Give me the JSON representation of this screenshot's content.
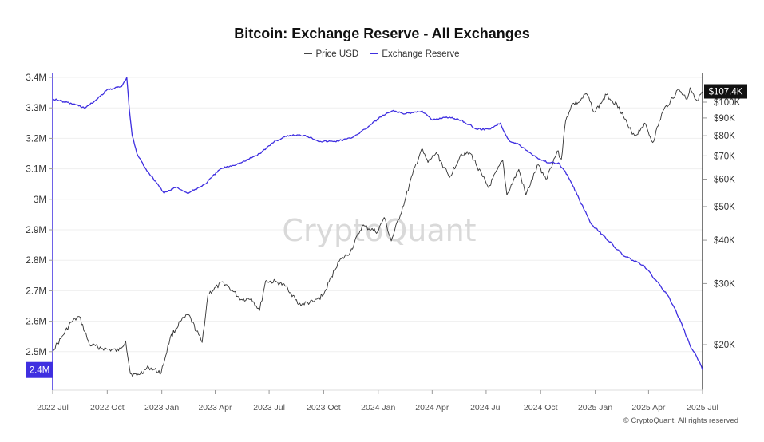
{
  "title": "Bitcoin: Exchange Reserve - All Exchanges",
  "watermark": "CryptoQuant",
  "copyright": "© CryptoQuant. All rights reserved",
  "colors": {
    "price": "#333333",
    "reserve": "#3f2fe0",
    "badge_price": "#111111",
    "badge_reserve": "#3f2fe0",
    "grid": "#efefef"
  },
  "chart_data": {
    "type": "line",
    "title": "Bitcoin: Exchange Reserve - All Exchanges",
    "legend_position": "top-center",
    "grid": true,
    "x_ticks": [
      "2022 Jul",
      "2022 Oct",
      "2023 Jan",
      "2023 Apr",
      "2023 Jul",
      "2023 Oct",
      "2024 Jan",
      "2024 Apr",
      "2024 Jul",
      "2024 Oct",
      "2025 Jan",
      "2025 Apr",
      "2025 Jul"
    ],
    "left_axis": {
      "series": "Exchange Reserve",
      "ylim": [
        2.4,
        3.4
      ],
      "ticks": [
        "3.4M",
        "3.3M",
        "3.2M",
        "3.1M",
        "3M",
        "2.9M",
        "2.8M",
        "2.7M",
        "2.6M",
        "2.5M"
      ],
      "tick_values": [
        3.4,
        3.3,
        3.2,
        3.1,
        3.0,
        2.9,
        2.8,
        2.7,
        2.6,
        2.5
      ],
      "current_label": "2.4M"
    },
    "right_axis": {
      "series": "Price USD",
      "scale": "log",
      "ticks": [
        "$100K",
        "$90K",
        "$80K",
        "$70K",
        "$60K",
        "$50K",
        "$40K",
        "$30K",
        "$20K"
      ],
      "tick_values": [
        100000,
        90000,
        80000,
        70000,
        60000,
        50000,
        40000,
        30000,
        20000
      ],
      "current_label": "$107.4K"
    },
    "series": [
      {
        "name": "Price USD",
        "axis": "right",
        "points": [
          [
            "2022-07-01",
            19300
          ],
          [
            "2022-07-15",
            20800
          ],
          [
            "2022-08-01",
            23200
          ],
          [
            "2022-08-15",
            24100
          ],
          [
            "2022-09-01",
            20000
          ],
          [
            "2022-09-15",
            19700
          ],
          [
            "2022-10-01",
            19400
          ],
          [
            "2022-10-20",
            19200
          ],
          [
            "2022-11-01",
            20500
          ],
          [
            "2022-11-09",
            16500
          ],
          [
            "2022-11-20",
            16300
          ],
          [
            "2022-12-10",
            17200
          ],
          [
            "2022-12-31",
            16600
          ],
          [
            "2023-01-15",
            20900
          ],
          [
            "2023-02-01",
            23300
          ],
          [
            "2023-02-15",
            24400
          ],
          [
            "2023-03-10",
            20300
          ],
          [
            "2023-03-20",
            28000
          ],
          [
            "2023-04-15",
            30300
          ],
          [
            "2023-05-01",
            28500
          ],
          [
            "2023-05-15",
            27000
          ],
          [
            "2023-06-01",
            27200
          ],
          [
            "2023-06-15",
            25100
          ],
          [
            "2023-06-25",
            30500
          ],
          [
            "2023-07-15",
            30300
          ],
          [
            "2023-08-01",
            29200
          ],
          [
            "2023-08-20",
            26100
          ],
          [
            "2023-09-15",
            26600
          ],
          [
            "2023-10-01",
            27900
          ],
          [
            "2023-10-25",
            34500
          ],
          [
            "2023-11-15",
            37000
          ],
          [
            "2023-12-05",
            44000
          ],
          [
            "2023-12-31",
            42300
          ],
          [
            "2024-01-11",
            46500
          ],
          [
            "2024-01-23",
            39800
          ],
          [
            "2024-02-15",
            52000
          ],
          [
            "2024-02-28",
            62000
          ],
          [
            "2024-03-14",
            73100
          ],
          [
            "2024-03-25",
            67000
          ],
          [
            "2024-04-08",
            71500
          ],
          [
            "2024-04-30",
            60600
          ],
          [
            "2024-05-20",
            71000
          ],
          [
            "2024-06-05",
            71000
          ],
          [
            "2024-06-25",
            61000
          ],
          [
            "2024-07-05",
            56700
          ],
          [
            "2024-07-29",
            68000
          ],
          [
            "2024-08-05",
            54000
          ],
          [
            "2024-08-25",
            64000
          ],
          [
            "2024-09-06",
            54000
          ],
          [
            "2024-09-27",
            66000
          ],
          [
            "2024-10-10",
            60000
          ],
          [
            "2024-10-29",
            72300
          ],
          [
            "2024-11-05",
            68500
          ],
          [
            "2024-11-12",
            88000
          ],
          [
            "2024-11-22",
            98300
          ],
          [
            "2024-12-05",
            100000
          ],
          [
            "2024-12-17",
            106000
          ],
          [
            "2024-12-31",
            93500
          ],
          [
            "2025-01-20",
            105000
          ],
          [
            "2025-02-10",
            97000
          ],
          [
            "2025-02-27",
            84000
          ],
          [
            "2025-03-10",
            80000
          ],
          [
            "2025-03-25",
            87000
          ],
          [
            "2025-04-08",
            76500
          ],
          [
            "2025-04-25",
            94000
          ],
          [
            "2025-05-22",
            109000
          ],
          [
            "2025-06-05",
            102000
          ],
          [
            "2025-06-10",
            110000
          ],
          [
            "2025-06-22",
            101000
          ],
          [
            "2025-07-01",
            107400
          ]
        ]
      },
      {
        "name": "Exchange Reserve",
        "axis": "left",
        "points": [
          [
            "2022-07-01",
            3.33
          ],
          [
            "2022-07-20",
            3.32
          ],
          [
            "2022-08-10",
            3.31
          ],
          [
            "2022-08-25",
            3.3
          ],
          [
            "2022-09-15",
            3.33
          ],
          [
            "2022-10-01",
            3.36
          ],
          [
            "2022-10-25",
            3.37
          ],
          [
            "2022-11-03",
            3.4
          ],
          [
            "2022-11-07",
            3.3
          ],
          [
            "2022-11-12",
            3.21
          ],
          [
            "2022-11-20",
            3.15
          ],
          [
            "2022-12-05",
            3.1
          ],
          [
            "2022-12-25",
            3.05
          ],
          [
            "2023-01-05",
            3.02
          ],
          [
            "2023-01-25",
            3.04
          ],
          [
            "2023-02-15",
            3.02
          ],
          [
            "2023-03-15",
            3.05
          ],
          [
            "2023-04-10",
            3.1
          ],
          [
            "2023-05-15",
            3.12
          ],
          [
            "2023-06-15",
            3.15
          ],
          [
            "2023-07-10",
            3.19
          ],
          [
            "2023-08-05",
            3.21
          ],
          [
            "2023-08-31",
            3.21
          ],
          [
            "2023-09-25",
            3.19
          ],
          [
            "2023-10-20",
            3.19
          ],
          [
            "2023-11-15",
            3.2
          ],
          [
            "2023-12-10",
            3.23
          ],
          [
            "2024-01-05",
            3.27
          ],
          [
            "2024-01-25",
            3.29
          ],
          [
            "2024-02-15",
            3.28
          ],
          [
            "2024-03-15",
            3.29
          ],
          [
            "2024-04-01",
            3.26
          ],
          [
            "2024-04-25",
            3.27
          ],
          [
            "2024-05-20",
            3.26
          ],
          [
            "2024-06-15",
            3.23
          ],
          [
            "2024-07-05",
            3.23
          ],
          [
            "2024-07-25",
            3.25
          ],
          [
            "2024-08-01",
            3.22
          ],
          [
            "2024-08-10",
            3.19
          ],
          [
            "2024-08-25",
            3.18
          ],
          [
            "2024-09-15",
            3.15
          ],
          [
            "2024-10-01",
            3.13
          ],
          [
            "2024-10-15",
            3.12
          ],
          [
            "2024-10-31",
            3.12
          ],
          [
            "2024-11-15",
            3.08
          ],
          [
            "2024-12-05",
            3.0
          ],
          [
            "2024-12-25",
            2.92
          ],
          [
            "2025-01-15",
            2.88
          ],
          [
            "2025-01-31",
            2.85
          ],
          [
            "2025-02-15",
            2.82
          ],
          [
            "2025-03-05",
            2.8
          ],
          [
            "2025-03-25",
            2.78
          ],
          [
            "2025-04-15",
            2.73
          ],
          [
            "2025-05-05",
            2.68
          ],
          [
            "2025-05-25",
            2.6
          ],
          [
            "2025-06-10",
            2.52
          ],
          [
            "2025-06-25",
            2.47
          ],
          [
            "2025-07-01",
            2.44
          ]
        ]
      }
    ]
  }
}
